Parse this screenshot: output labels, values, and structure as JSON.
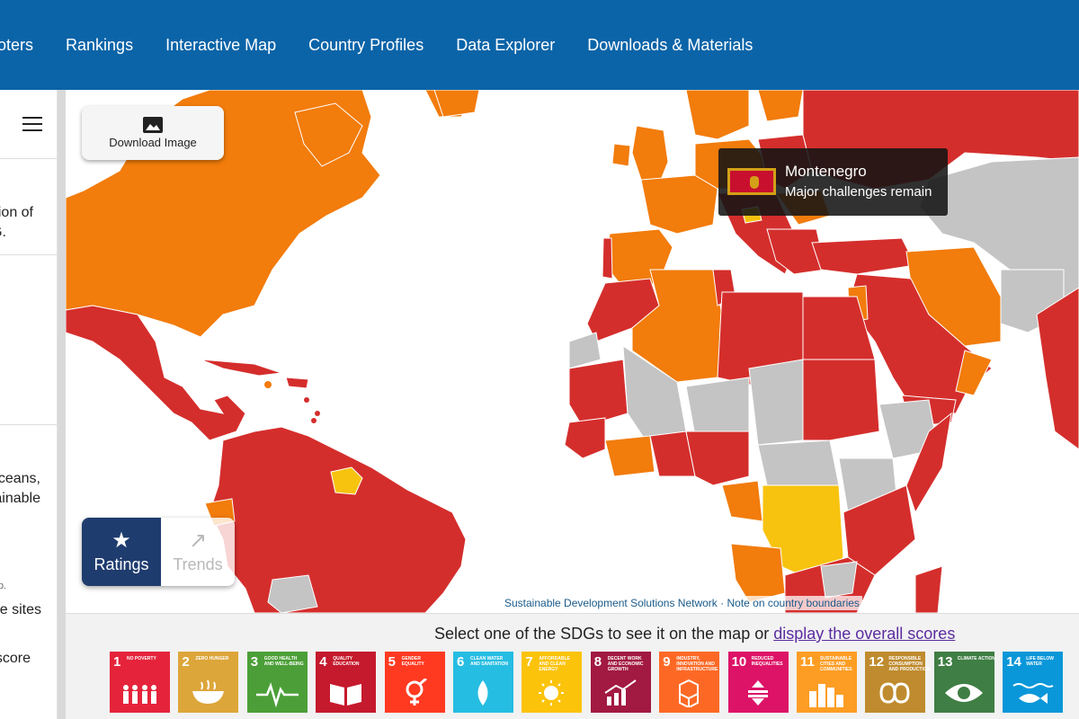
{
  "nav": {
    "items": [
      {
        "label": "oters"
      },
      {
        "label": "Rankings"
      },
      {
        "label": "Interactive Map"
      },
      {
        "label": "Country Profiles"
      },
      {
        "label": "Data Explorer"
      },
      {
        "label": "Downloads & Materials"
      }
    ]
  },
  "left_panel": {
    "menu_icon": "hamburger-menu-icon",
    "text1_line1": "ion of",
    "text1_line2": "G.",
    "text2_line1": "ceans,",
    "text2_line2": "ainable",
    "small_text": "p.",
    "text3": "e sites",
    "text4": "score"
  },
  "map": {
    "download_label": "Download Image",
    "download_icon": "image-icon",
    "tooltip": {
      "country": "Montenegro",
      "status": "Major challenges remain",
      "flag_colors": {
        "field": "#c8102e",
        "border": "#d4a017"
      }
    },
    "toggle": {
      "ratings_label": "Ratings",
      "ratings_icon": "star-icon",
      "trends_label": "Trends",
      "trends_icon": "arrow-trend-icon",
      "selected": "Ratings"
    },
    "attribution": {
      "source": "Sustainable Development Solutions Network",
      "separator": "·",
      "note": "Note on country boundaries"
    },
    "legend_colors": {
      "major_challenges": "#d42e2c",
      "significant_challenges": "#f27c0c",
      "challenges_remain": "#f7c30f",
      "no_data": "#c4c4c4"
    }
  },
  "sdg_bar": {
    "prompt_prefix": "Select one of the SDGs to see it on the map or ",
    "prompt_link": "display the overall scores",
    "goals": [
      {
        "num": "1",
        "title": "No Poverty",
        "color": "#e5243b",
        "icon": "family-icon"
      },
      {
        "num": "2",
        "title": "Zero Hunger",
        "color": "#dda63a",
        "icon": "bowl-icon"
      },
      {
        "num": "3",
        "title": "Good Health and Well-Being",
        "color": "#4c9f38",
        "icon": "heartbeat-icon"
      },
      {
        "num": "4",
        "title": "Quality Education",
        "color": "#c5192d",
        "icon": "book-icon"
      },
      {
        "num": "5",
        "title": "Gender Equality",
        "color": "#ff3a21",
        "icon": "gender-icon"
      },
      {
        "num": "6",
        "title": "Clean Water and Sanitation",
        "color": "#26bde2",
        "icon": "water-drop-icon"
      },
      {
        "num": "7",
        "title": "Affordable and Clean Energy",
        "color": "#fcc30b",
        "icon": "sun-power-icon"
      },
      {
        "num": "8",
        "title": "Decent Work and Economic Growth",
        "color": "#a21942",
        "icon": "growth-chart-icon"
      },
      {
        "num": "9",
        "title": "Industry, Innovation and Infrastructure",
        "color": "#fd6925",
        "icon": "cubes-icon"
      },
      {
        "num": "10",
        "title": "Reduced Inequalities",
        "color": "#dd1367",
        "icon": "equality-icon"
      },
      {
        "num": "11",
        "title": "Sustainable Cities and Communities",
        "color": "#fd9d24",
        "icon": "city-icon"
      },
      {
        "num": "12",
        "title": "Responsible Consumption and Production",
        "color": "#bf8b2e",
        "icon": "infinity-icon"
      },
      {
        "num": "13",
        "title": "Climate Action",
        "color": "#3f7e44",
        "icon": "eye-globe-icon"
      },
      {
        "num": "14",
        "title": "Life Below Water",
        "color": "#0a97d9",
        "icon": "fish-icon"
      }
    ]
  }
}
